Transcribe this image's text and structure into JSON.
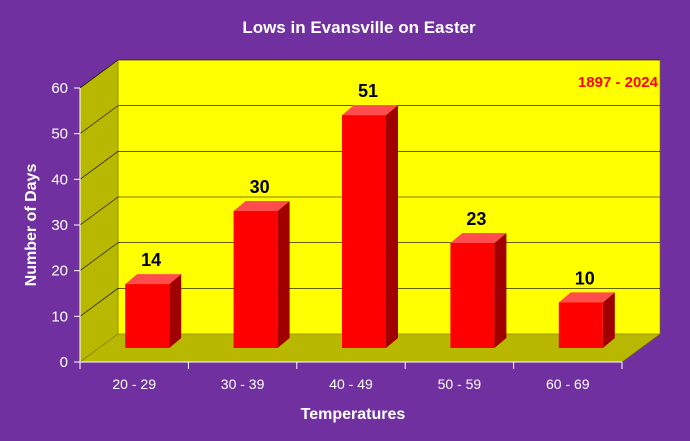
{
  "colors": {
    "background": "#7030a0",
    "plot_back_wall": "#ffff00",
    "plot_side_wall": "#b8b800",
    "plot_floor": "#b8b800",
    "bar_front": "#ff0000",
    "bar_top": "#ff4d4d",
    "bar_side": "#a00000",
    "annotation_text": "#ff0000",
    "axis_text": "#ffffff",
    "data_label_text": "#000000"
  },
  "chart_data": {
    "type": "bar",
    "style": "3d-column",
    "title": "Lows in Evansville on Easter",
    "annotation": "1897 - 2024",
    "xlabel": "Temperatures",
    "ylabel": "Number of Days",
    "categories": [
      "20 - 29",
      "30 - 39",
      "40 - 49",
      "50 - 59",
      "60 - 69"
    ],
    "values": [
      14,
      30,
      51,
      23,
      10
    ],
    "ylim": [
      0,
      60
    ],
    "yticks": [
      0,
      10,
      20,
      30,
      40,
      50,
      60
    ],
    "grid": true,
    "legend": "none"
  }
}
